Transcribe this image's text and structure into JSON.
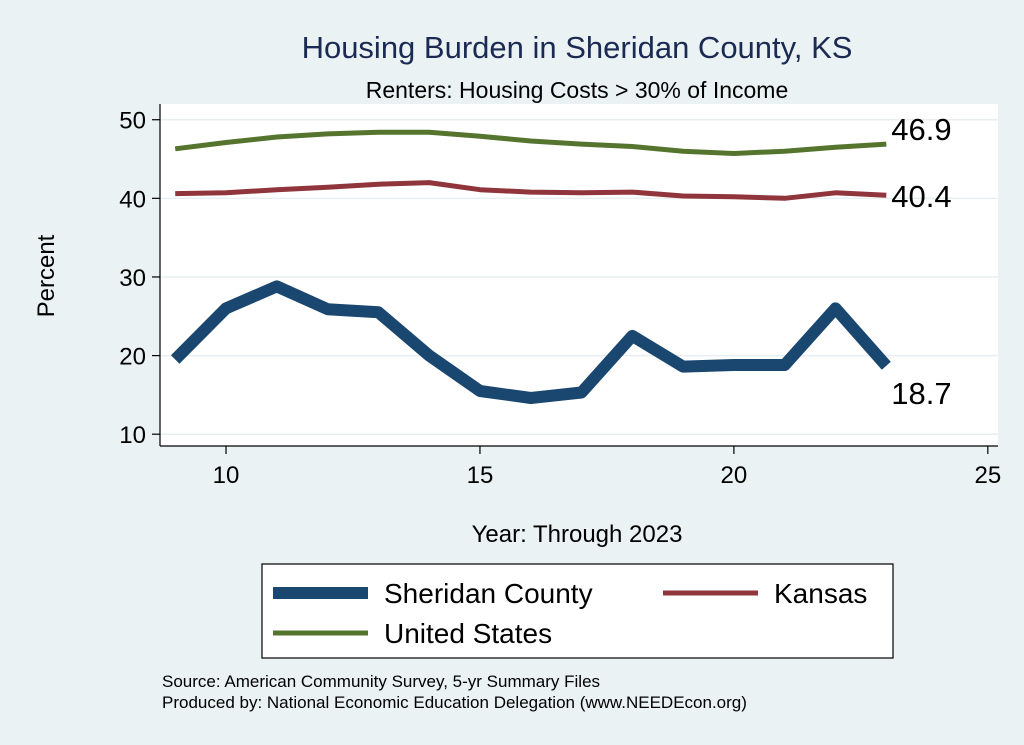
{
  "chart_data": {
    "type": "line",
    "title": "Housing Burden in Sheridan County, KS",
    "subtitle": "Renters: Housing Costs > 30% of Income",
    "xlabel": "Year: Through 2023",
    "ylabel": "Percent",
    "xlim": [
      8.7,
      25.2
    ],
    "ylim": [
      8.5,
      52
    ],
    "xticks": [
      10,
      15,
      20,
      25
    ],
    "yticks": [
      10,
      20,
      30,
      40,
      50
    ],
    "grid": true,
    "legend_position": "bottom",
    "x": [
      9,
      10,
      11,
      12,
      13,
      14,
      15,
      16,
      17,
      18,
      19,
      20,
      21,
      22,
      23
    ],
    "series": [
      {
        "name": "Sheridan County",
        "color": "#1a476f",
        "values": [
          19.5,
          26.0,
          28.8,
          25.9,
          25.5,
          20.0,
          15.5,
          14.6,
          15.3,
          22.5,
          18.6,
          18.8,
          18.8,
          26.0,
          18.7
        ],
        "end_label": "18.7"
      },
      {
        "name": "Kansas",
        "color": "#90353b",
        "values": [
          40.6,
          40.7,
          41.1,
          41.4,
          41.8,
          42.0,
          41.1,
          40.8,
          40.7,
          40.8,
          40.3,
          40.2,
          40.0,
          40.7,
          40.4
        ],
        "end_label": "40.4"
      },
      {
        "name": "United States",
        "color": "#55752f",
        "values": [
          46.3,
          47.1,
          47.8,
          48.2,
          48.4,
          48.4,
          47.9,
          47.3,
          46.9,
          46.6,
          46.0,
          45.7,
          46.0,
          46.5,
          46.9
        ],
        "end_label": "46.9"
      }
    ],
    "source_lines": [
      "Source: American Community Survey, 5-yr Summary Files",
      "Produced by: National Economic Education Delegation (www.NEEDEcon.org)"
    ]
  }
}
